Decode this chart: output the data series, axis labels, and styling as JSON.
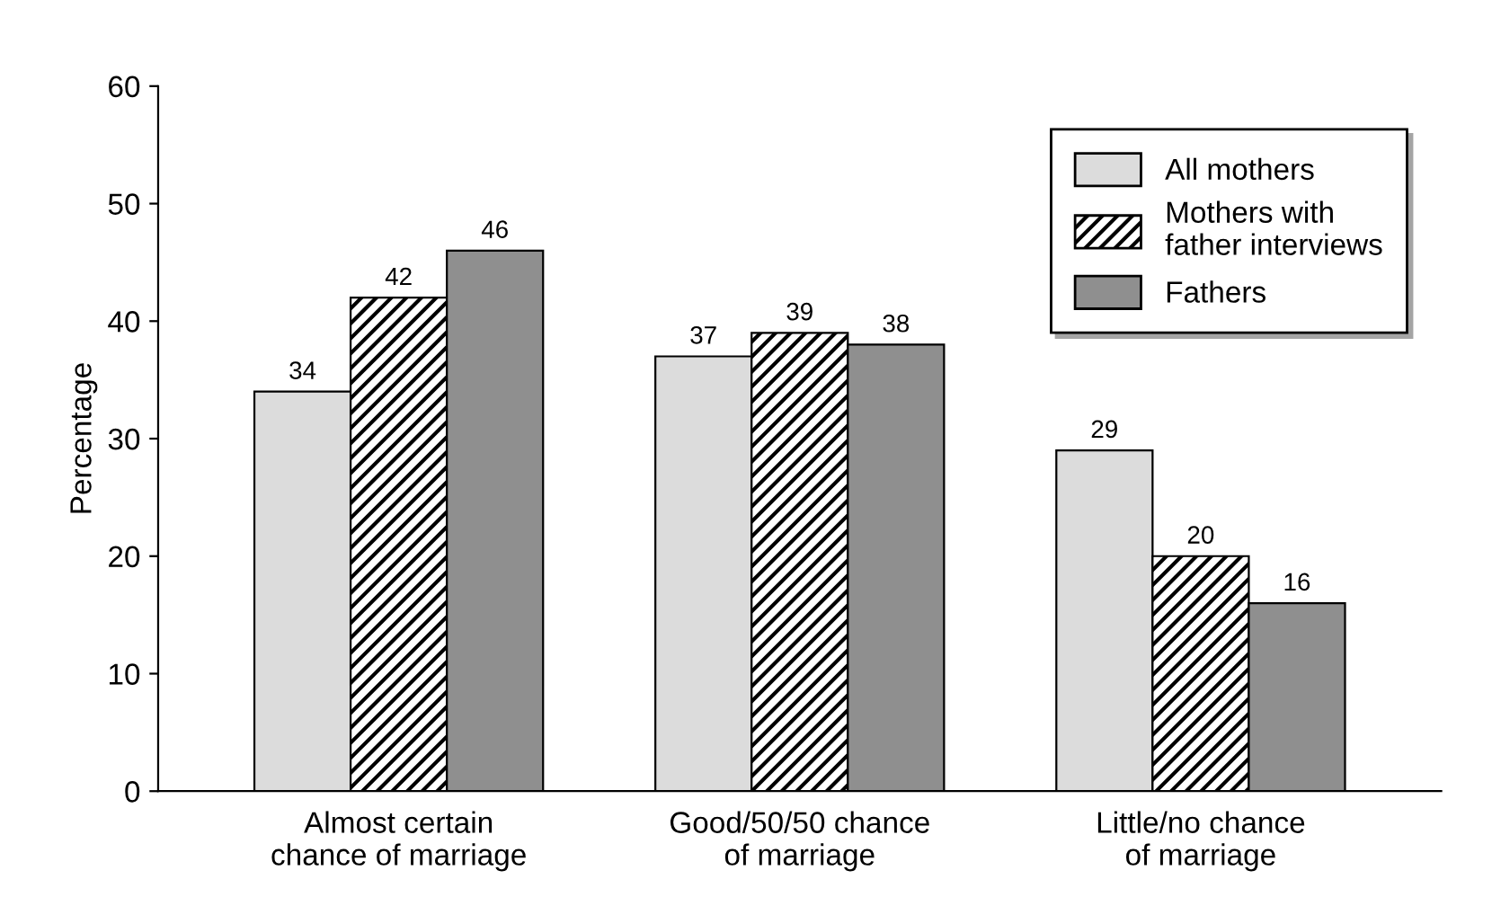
{
  "chart_data": {
    "type": "bar",
    "ylabel": "Percentage",
    "categories": [
      "Almost certain\nchance of marriage",
      "Good/50/50 chance\nof marriage",
      "Little/no chance\nof marriage"
    ],
    "series": [
      {
        "name": "All mothers",
        "color": "#dcdcdc",
        "values": [
          34,
          37,
          29
        ]
      },
      {
        "name": "Mothers with\nfather interviews",
        "color": "#000000",
        "values": [
          42,
          39,
          20
        ]
      },
      {
        "name": "Fathers",
        "color": "#8f8f8f",
        "values": [
          46,
          38,
          16
        ]
      }
    ],
    "ylim": [
      0,
      60
    ],
    "yticks": [
      0,
      10,
      20,
      30,
      40,
      50,
      60
    ],
    "grid": false,
    "legend": "top right",
    "data_labels": true
  }
}
